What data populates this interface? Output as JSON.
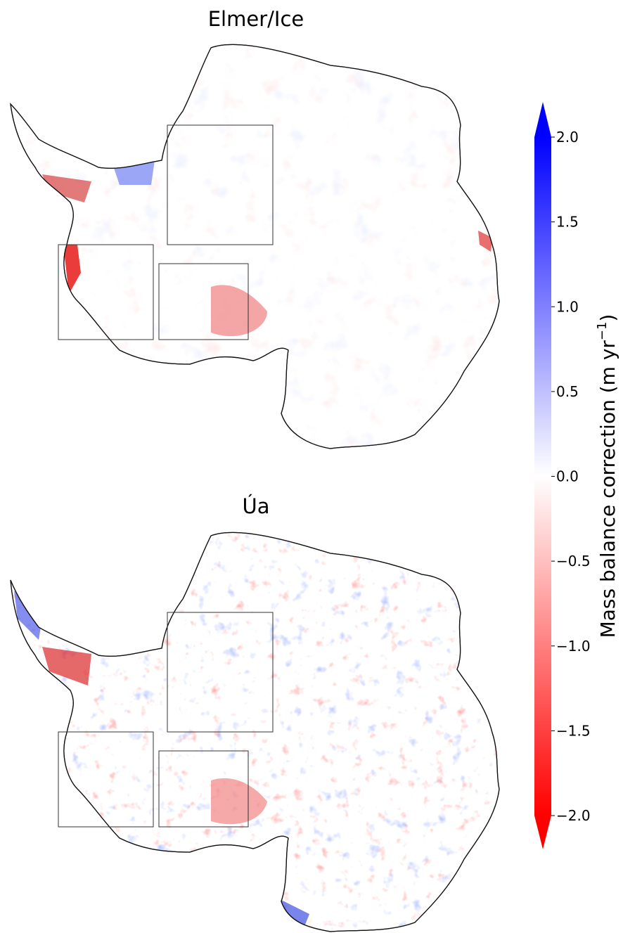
{
  "panels": [
    {
      "title": "Elmer/Ice"
    },
    {
      "title": "Úa"
    }
  ],
  "colorbar": {
    "label_main": "Mass balance correction (m yr",
    "label_sup": "−1",
    "label_close": ")",
    "min": -2.0,
    "max": 2.0,
    "extend": "both",
    "colors": {
      "low": "#ff0000",
      "mid": "#ffffff",
      "high": "#0000ff"
    },
    "ticks": [
      {
        "value": 2.0,
        "label": "2.0"
      },
      {
        "value": 1.5,
        "label": "1.5"
      },
      {
        "value": 1.0,
        "label": "1.0"
      },
      {
        "value": 0.5,
        "label": "0.5"
      },
      {
        "value": 0.0,
        "label": "0.0"
      },
      {
        "value": -0.5,
        "label": "−0.5"
      },
      {
        "value": -1.0,
        "label": "−1.0"
      },
      {
        "value": -1.5,
        "label": "−1.5"
      },
      {
        "value": -2.0,
        "label": "−2.0"
      }
    ]
  }
}
